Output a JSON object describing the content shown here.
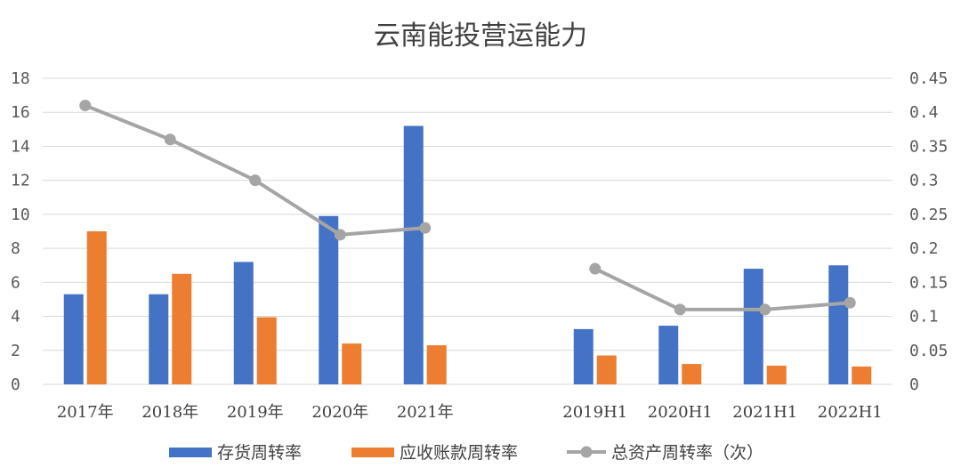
{
  "chart_data": {
    "type": "bar",
    "title": "云南能投营运能力",
    "categories": [
      "2017年",
      "2018年",
      "2019年",
      "2020年",
      "2021年",
      "",
      "2019H1",
      "2020H1",
      "2021H1",
      "2022H1"
    ],
    "series": [
      {
        "name": "存货周转率",
        "type": "bar",
        "axis": "left",
        "color": "#4472C4",
        "values": [
          5.3,
          5.3,
          7.2,
          9.9,
          15.2,
          null,
          3.25,
          3.45,
          6.8,
          7.0
        ]
      },
      {
        "name": "应收账款周转率",
        "type": "bar",
        "axis": "left",
        "color": "#ED7D31",
        "values": [
          9.0,
          6.5,
          3.95,
          2.4,
          2.3,
          null,
          1.7,
          1.2,
          1.1,
          1.05
        ]
      },
      {
        "name": "总资产周转率（次）",
        "type": "line",
        "axis": "right",
        "color": "#A5A5A5",
        "values": [
          0.41,
          0.36,
          0.3,
          0.22,
          0.23,
          null,
          0.17,
          0.11,
          0.11,
          0.12
        ]
      }
    ],
    "left_axis": {
      "min": 0,
      "max": 18,
      "ticks": [
        "0",
        "2",
        "4",
        "6",
        "8",
        "10",
        "12",
        "14",
        "16",
        "18"
      ]
    },
    "right_axis": {
      "min": 0,
      "max": 0.45,
      "ticks": [
        "0",
        "0.05",
        "0.1",
        "0.15",
        "0.2",
        "0.25",
        "0.3",
        "0.35",
        "0.4",
        "0.45"
      ]
    },
    "grid": true,
    "legend_position": "bottom"
  }
}
